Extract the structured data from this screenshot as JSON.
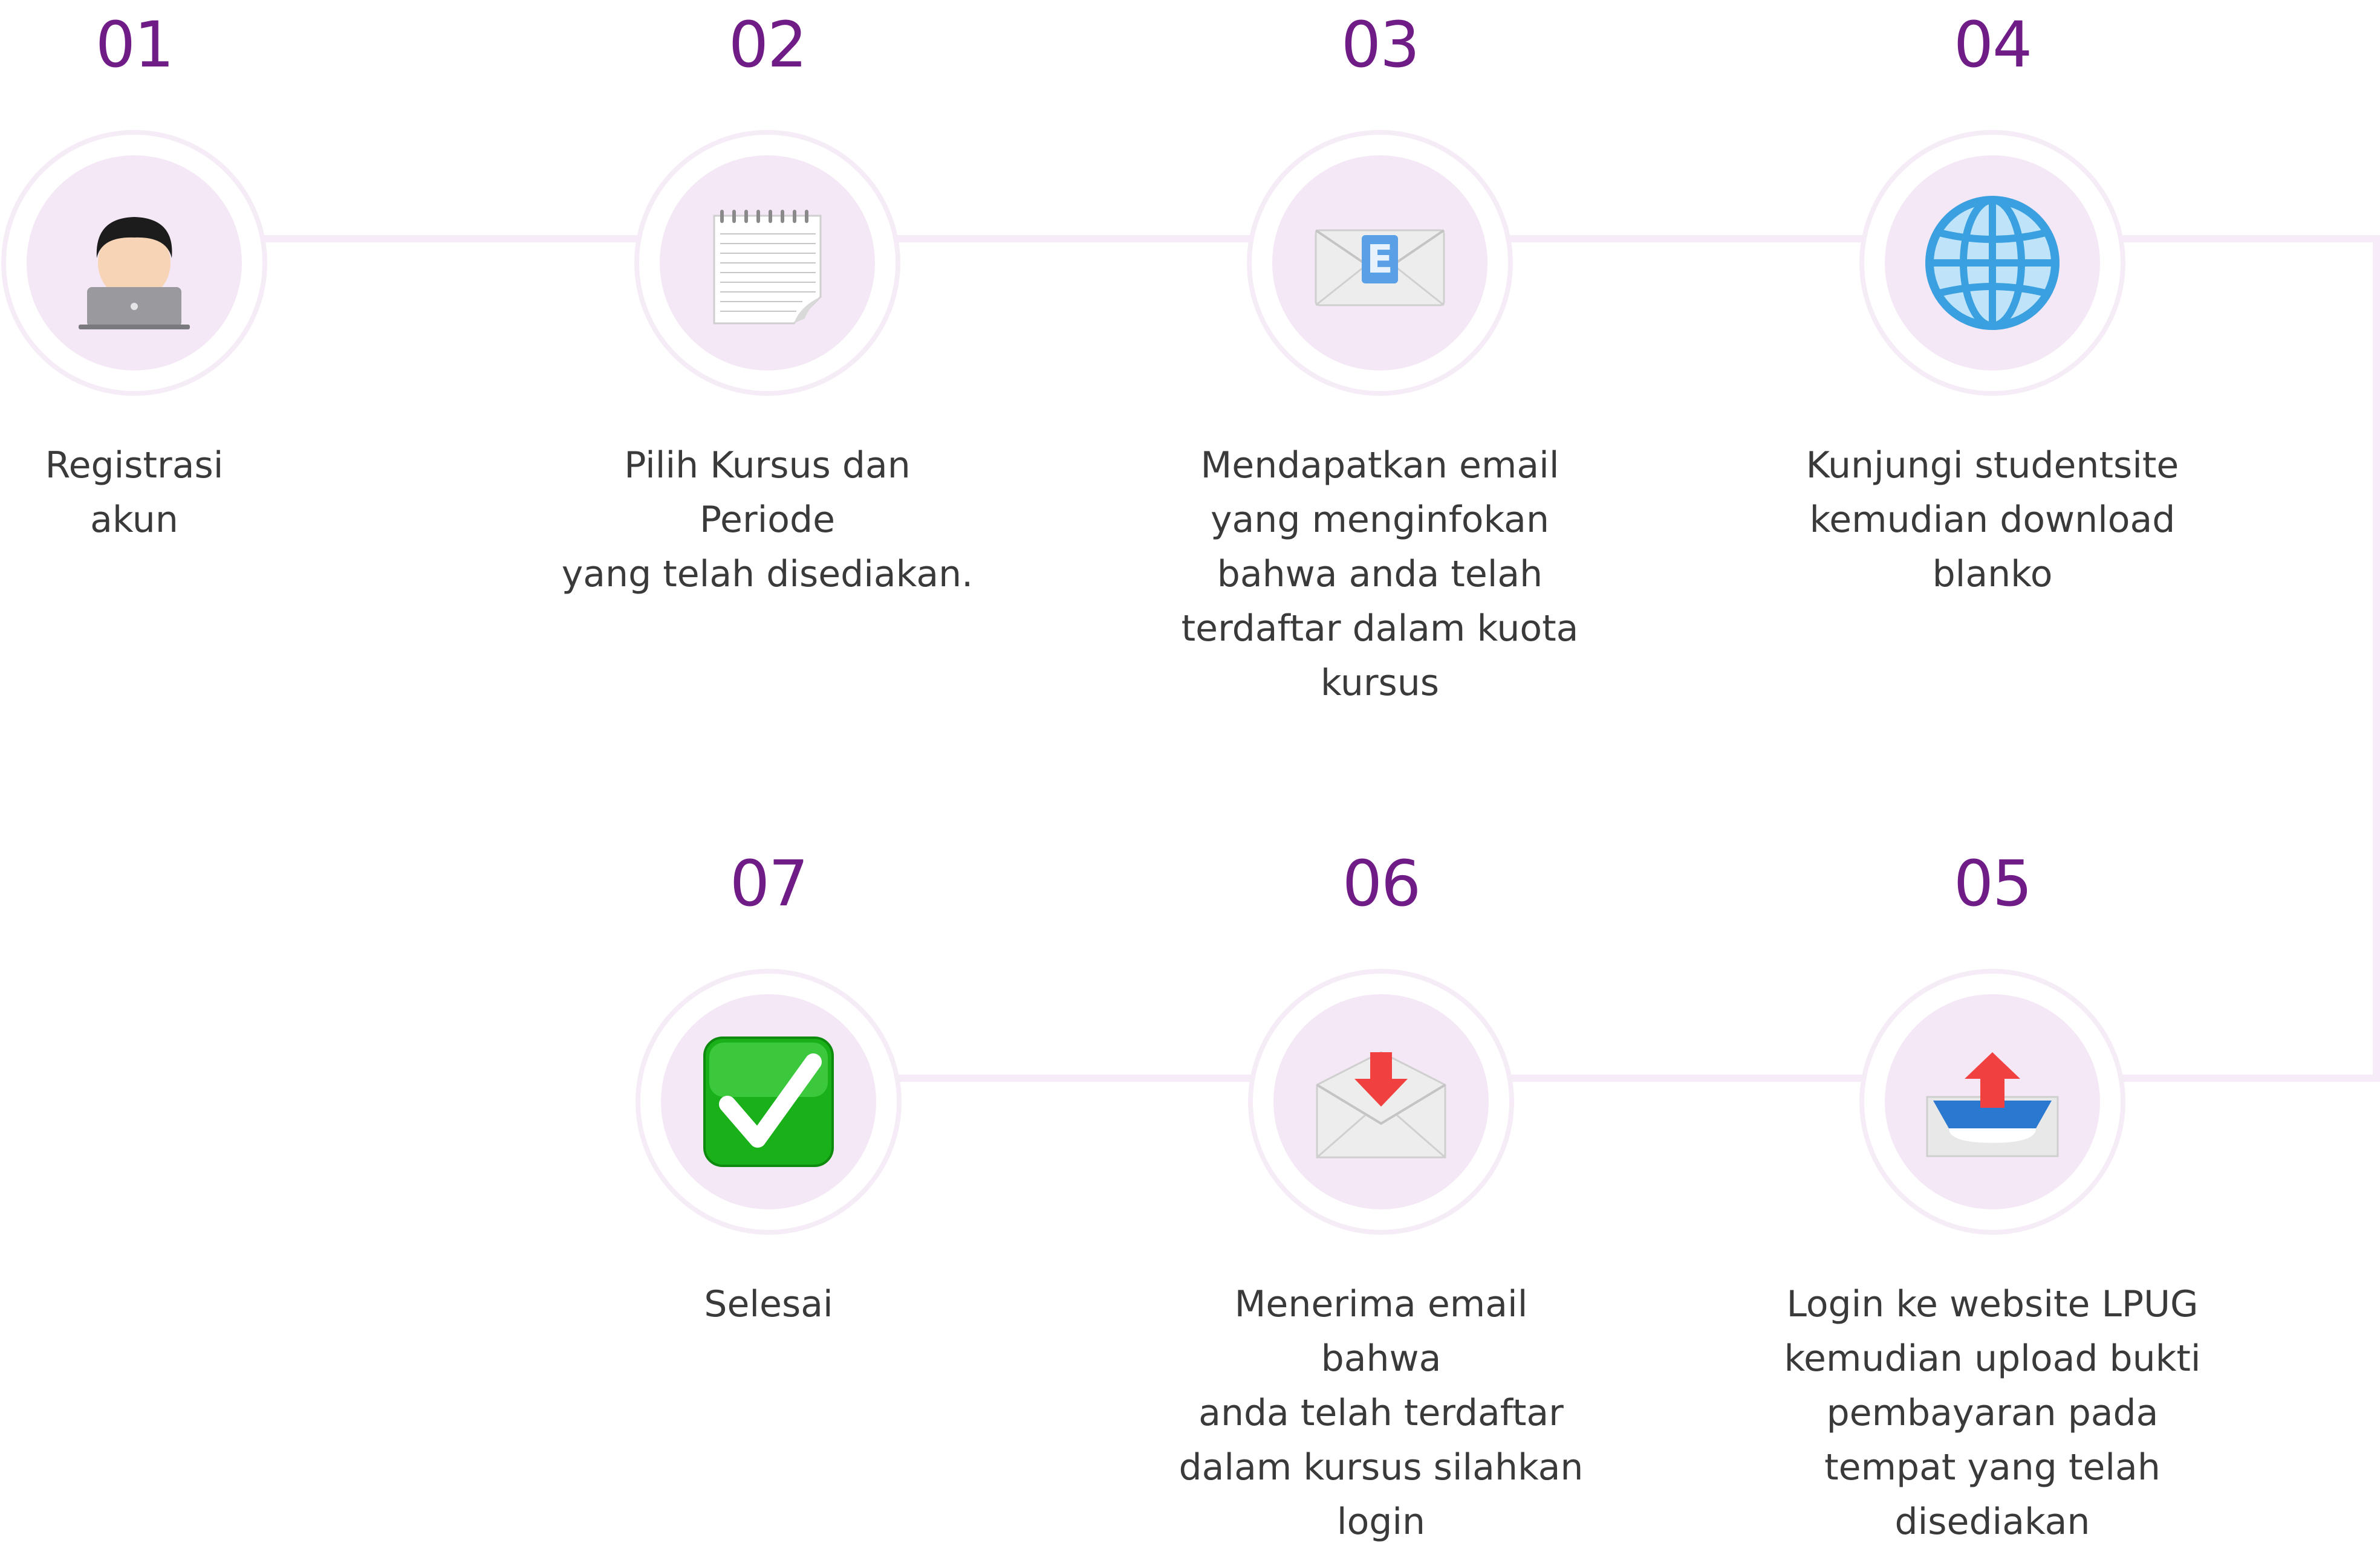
{
  "steps": [
    {
      "number": "01",
      "text": [
        "Registrasi",
        "akun"
      ],
      "icon": "technologist-icon"
    },
    {
      "number": "02",
      "text": [
        "Pilih Kursus dan Periode",
        "yang telah disediakan."
      ],
      "icon": "notepad-icon"
    },
    {
      "number": "03",
      "text": [
        "Mendapatkan email",
        "yang menginfokan",
        "bahwa anda telah",
        "terdaftar dalam kuota",
        "kursus"
      ],
      "icon": "email-envelope-icon"
    },
    {
      "number": "04",
      "text": [
        "Kunjungi studentsite",
        "kemudian download",
        "blanko"
      ],
      "icon": "globe-icon"
    },
    {
      "number": "05",
      "text": [
        "Login ke website LPUG",
        "kemudian upload bukti",
        "pembayaran pada",
        "tempat yang telah",
        "disediakan"
      ],
      "icon": "outbox-tray-icon"
    },
    {
      "number": "06",
      "text": [
        "Menerima email bahwa",
        "anda telah terdaftar",
        "dalam kursus silahkan",
        "login"
      ],
      "icon": "incoming-envelope-icon"
    },
    {
      "number": "07",
      "text": [
        "Selesai"
      ],
      "icon": "check-mark-icon"
    }
  ],
  "colors": {
    "number": "#701c87",
    "text": "#3a3a3a",
    "ring": "#f6ecf7",
    "disc": "#f5e8f6"
  }
}
